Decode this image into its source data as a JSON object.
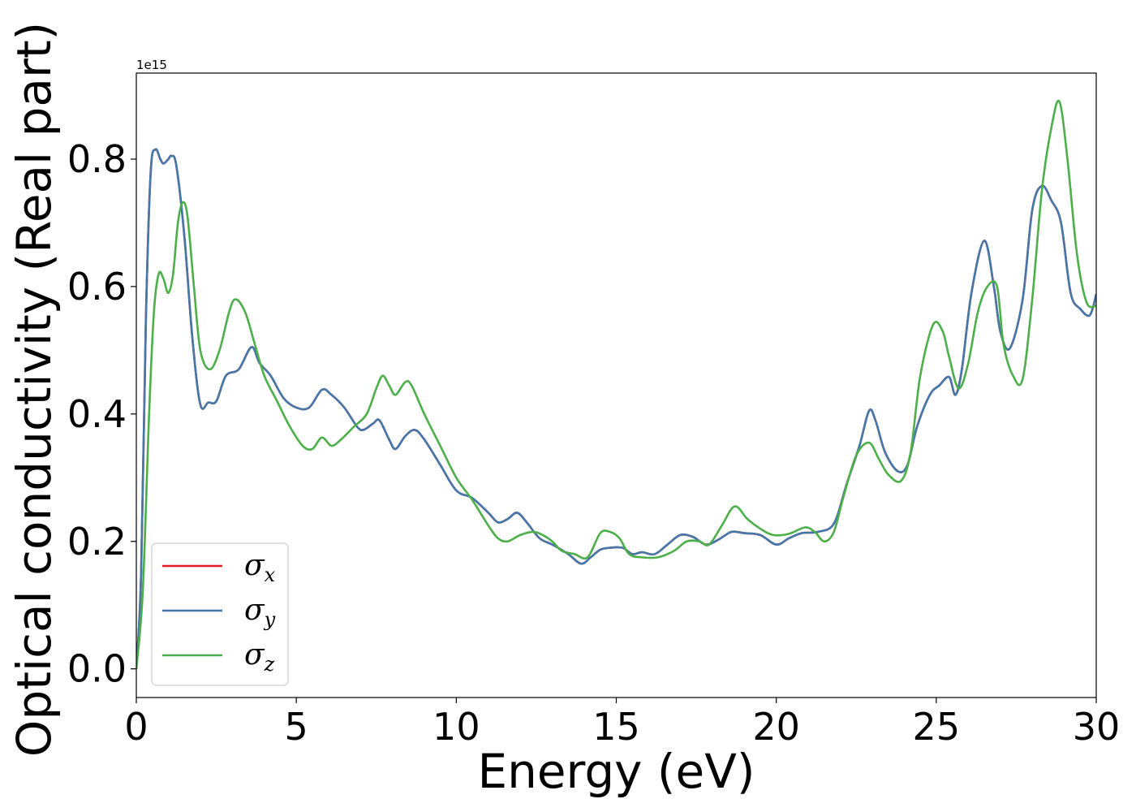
{
  "chart_data": {
    "type": "line",
    "title": "",
    "xlabel": "Energy (eV)",
    "ylabel": "Optical conductivity (Real part)",
    "y_offset_label": "1e15",
    "xlim": [
      0,
      30
    ],
    "ylim": [
      -0.045,
      0.935
    ],
    "xticks": [
      0,
      5,
      10,
      15,
      20,
      25,
      30
    ],
    "xtick_labels": [
      "0",
      "5",
      "10",
      "15",
      "20",
      "25",
      "30"
    ],
    "yticks": [
      0.0,
      0.2,
      0.4,
      0.6,
      0.8
    ],
    "ytick_labels": [
      "0.0",
      "0.2",
      "0.4",
      "0.6",
      "0.8"
    ],
    "grid": false,
    "legend_position": "lower-left",
    "series": [
      {
        "name": "σx",
        "symbol": "σ",
        "subscript": "x",
        "color": "#e41a1c",
        "points": [
          [
            0,
            0
          ],
          [
            0.15,
            0.15
          ],
          [
            0.3,
            0.55
          ],
          [
            0.45,
            0.78
          ],
          [
            0.6,
            0.815
          ],
          [
            0.75,
            0.8
          ],
          [
            0.85,
            0.793
          ],
          [
            1.0,
            0.8
          ],
          [
            1.1,
            0.805
          ],
          [
            1.25,
            0.79
          ],
          [
            1.5,
            0.68
          ],
          [
            1.75,
            0.52
          ],
          [
            2.0,
            0.415
          ],
          [
            2.25,
            0.418
          ],
          [
            2.5,
            0.42
          ],
          [
            2.8,
            0.46
          ],
          [
            3.2,
            0.47
          ],
          [
            3.6,
            0.505
          ],
          [
            3.85,
            0.48
          ],
          [
            4.2,
            0.46
          ],
          [
            4.6,
            0.425
          ],
          [
            5.0,
            0.41
          ],
          [
            5.4,
            0.41
          ],
          [
            5.8,
            0.438
          ],
          [
            6.1,
            0.43
          ],
          [
            6.5,
            0.41
          ],
          [
            6.9,
            0.38
          ],
          [
            7.1,
            0.375
          ],
          [
            7.4,
            0.385
          ],
          [
            7.6,
            0.39
          ],
          [
            7.9,
            0.36
          ],
          [
            8.1,
            0.345
          ],
          [
            8.4,
            0.365
          ],
          [
            8.7,
            0.375
          ],
          [
            9.0,
            0.36
          ],
          [
            9.5,
            0.32
          ],
          [
            10.0,
            0.28
          ],
          [
            10.5,
            0.268
          ],
          [
            11.0,
            0.245
          ],
          [
            11.3,
            0.23
          ],
          [
            11.6,
            0.235
          ],
          [
            11.9,
            0.245
          ],
          [
            12.2,
            0.23
          ],
          [
            12.6,
            0.205
          ],
          [
            13.0,
            0.195
          ],
          [
            13.5,
            0.18
          ],
          [
            13.9,
            0.165
          ],
          [
            14.2,
            0.175
          ],
          [
            14.5,
            0.187
          ],
          [
            14.8,
            0.19
          ],
          [
            15.2,
            0.19
          ],
          [
            15.5,
            0.18
          ],
          [
            15.8,
            0.183
          ],
          [
            16.2,
            0.18
          ],
          [
            16.6,
            0.195
          ],
          [
            17.0,
            0.21
          ],
          [
            17.4,
            0.207
          ],
          [
            17.8,
            0.195
          ],
          [
            18.2,
            0.203
          ],
          [
            18.6,
            0.215
          ],
          [
            19.0,
            0.213
          ],
          [
            19.5,
            0.21
          ],
          [
            20.0,
            0.195
          ],
          [
            20.4,
            0.205
          ],
          [
            20.8,
            0.213
          ],
          [
            21.3,
            0.215
          ],
          [
            21.8,
            0.228
          ],
          [
            22.2,
            0.29
          ],
          [
            22.6,
            0.35
          ],
          [
            22.9,
            0.405
          ],
          [
            23.1,
            0.39
          ],
          [
            23.4,
            0.34
          ],
          [
            23.8,
            0.31
          ],
          [
            24.1,
            0.32
          ],
          [
            24.4,
            0.38
          ],
          [
            24.8,
            0.43
          ],
          [
            25.1,
            0.445
          ],
          [
            25.4,
            0.458
          ],
          [
            25.6,
            0.43
          ],
          [
            25.8,
            0.47
          ],
          [
            26.1,
            0.59
          ],
          [
            26.5,
            0.672
          ],
          [
            26.8,
            0.6
          ],
          [
            27.0,
            0.53
          ],
          [
            27.3,
            0.503
          ],
          [
            27.7,
            0.58
          ],
          [
            28.0,
            0.72
          ],
          [
            28.3,
            0.758
          ],
          [
            28.6,
            0.735
          ],
          [
            28.9,
            0.7
          ],
          [
            29.2,
            0.59
          ],
          [
            29.5,
            0.565
          ],
          [
            29.8,
            0.555
          ],
          [
            30.0,
            0.588
          ]
        ]
      },
      {
        "name": "σy",
        "symbol": "σ",
        "subscript": "y",
        "color": "#4477aa",
        "points": [
          [
            0,
            0
          ],
          [
            0.15,
            0.15
          ],
          [
            0.3,
            0.55
          ],
          [
            0.45,
            0.78
          ],
          [
            0.6,
            0.815
          ],
          [
            0.75,
            0.8
          ],
          [
            0.85,
            0.793
          ],
          [
            1.0,
            0.8
          ],
          [
            1.1,
            0.805
          ],
          [
            1.25,
            0.79
          ],
          [
            1.5,
            0.68
          ],
          [
            1.75,
            0.52
          ],
          [
            2.0,
            0.415
          ],
          [
            2.25,
            0.418
          ],
          [
            2.5,
            0.42
          ],
          [
            2.8,
            0.46
          ],
          [
            3.2,
            0.47
          ],
          [
            3.6,
            0.505
          ],
          [
            3.85,
            0.48
          ],
          [
            4.2,
            0.46
          ],
          [
            4.6,
            0.425
          ],
          [
            5.0,
            0.41
          ],
          [
            5.4,
            0.41
          ],
          [
            5.8,
            0.438
          ],
          [
            6.1,
            0.43
          ],
          [
            6.5,
            0.41
          ],
          [
            6.9,
            0.38
          ],
          [
            7.1,
            0.375
          ],
          [
            7.4,
            0.385
          ],
          [
            7.6,
            0.39
          ],
          [
            7.9,
            0.36
          ],
          [
            8.1,
            0.345
          ],
          [
            8.4,
            0.365
          ],
          [
            8.7,
            0.375
          ],
          [
            9.0,
            0.36
          ],
          [
            9.5,
            0.32
          ],
          [
            10.0,
            0.28
          ],
          [
            10.5,
            0.268
          ],
          [
            11.0,
            0.245
          ],
          [
            11.3,
            0.23
          ],
          [
            11.6,
            0.235
          ],
          [
            11.9,
            0.245
          ],
          [
            12.2,
            0.23
          ],
          [
            12.6,
            0.205
          ],
          [
            13.0,
            0.195
          ],
          [
            13.5,
            0.18
          ],
          [
            13.9,
            0.165
          ],
          [
            14.2,
            0.175
          ],
          [
            14.5,
            0.187
          ],
          [
            14.8,
            0.19
          ],
          [
            15.2,
            0.19
          ],
          [
            15.5,
            0.18
          ],
          [
            15.8,
            0.183
          ],
          [
            16.2,
            0.18
          ],
          [
            16.6,
            0.195
          ],
          [
            17.0,
            0.21
          ],
          [
            17.4,
            0.207
          ],
          [
            17.8,
            0.195
          ],
          [
            18.2,
            0.203
          ],
          [
            18.6,
            0.215
          ],
          [
            19.0,
            0.213
          ],
          [
            19.5,
            0.21
          ],
          [
            20.0,
            0.195
          ],
          [
            20.4,
            0.205
          ],
          [
            20.8,
            0.213
          ],
          [
            21.3,
            0.215
          ],
          [
            21.8,
            0.228
          ],
          [
            22.2,
            0.29
          ],
          [
            22.6,
            0.35
          ],
          [
            22.9,
            0.405
          ],
          [
            23.1,
            0.39
          ],
          [
            23.4,
            0.34
          ],
          [
            23.8,
            0.31
          ],
          [
            24.1,
            0.32
          ],
          [
            24.4,
            0.38
          ],
          [
            24.8,
            0.43
          ],
          [
            25.1,
            0.445
          ],
          [
            25.4,
            0.458
          ],
          [
            25.6,
            0.43
          ],
          [
            25.8,
            0.47
          ],
          [
            26.1,
            0.59
          ],
          [
            26.5,
            0.672
          ],
          [
            26.8,
            0.6
          ],
          [
            27.0,
            0.53
          ],
          [
            27.3,
            0.503
          ],
          [
            27.7,
            0.58
          ],
          [
            28.0,
            0.72
          ],
          [
            28.3,
            0.758
          ],
          [
            28.6,
            0.735
          ],
          [
            28.9,
            0.7
          ],
          [
            29.2,
            0.59
          ],
          [
            29.5,
            0.565
          ],
          [
            29.8,
            0.555
          ],
          [
            30.0,
            0.588
          ]
        ]
      },
      {
        "name": "σz",
        "symbol": "σ",
        "subscript": "z",
        "color": "#4daf4a",
        "points": [
          [
            0,
            0
          ],
          [
            0.2,
            0.12
          ],
          [
            0.4,
            0.4
          ],
          [
            0.55,
            0.56
          ],
          [
            0.7,
            0.62
          ],
          [
            0.85,
            0.612
          ],
          [
            1.0,
            0.59
          ],
          [
            1.15,
            0.62
          ],
          [
            1.3,
            0.7
          ],
          [
            1.45,
            0.732
          ],
          [
            1.6,
            0.71
          ],
          [
            1.8,
            0.6
          ],
          [
            2.0,
            0.5
          ],
          [
            2.3,
            0.47
          ],
          [
            2.6,
            0.5
          ],
          [
            2.9,
            0.56
          ],
          [
            3.1,
            0.58
          ],
          [
            3.4,
            0.56
          ],
          [
            3.7,
            0.51
          ],
          [
            4.0,
            0.46
          ],
          [
            4.4,
            0.42
          ],
          [
            4.8,
            0.38
          ],
          [
            5.2,
            0.35
          ],
          [
            5.5,
            0.345
          ],
          [
            5.8,
            0.363
          ],
          [
            6.1,
            0.35
          ],
          [
            6.4,
            0.36
          ],
          [
            6.8,
            0.38
          ],
          [
            7.2,
            0.4
          ],
          [
            7.5,
            0.44
          ],
          [
            7.7,
            0.46
          ],
          [
            7.9,
            0.445
          ],
          [
            8.1,
            0.43
          ],
          [
            8.4,
            0.45
          ],
          [
            8.6,
            0.445
          ],
          [
            9.0,
            0.4
          ],
          [
            9.5,
            0.35
          ],
          [
            10.0,
            0.3
          ],
          [
            10.5,
            0.265
          ],
          [
            11.0,
            0.225
          ],
          [
            11.3,
            0.205
          ],
          [
            11.6,
            0.2
          ],
          [
            12.0,
            0.21
          ],
          [
            12.4,
            0.215
          ],
          [
            12.7,
            0.21
          ],
          [
            13.0,
            0.2
          ],
          [
            13.3,
            0.185
          ],
          [
            13.7,
            0.18
          ],
          [
            14.1,
            0.175
          ],
          [
            14.5,
            0.213
          ],
          [
            14.8,
            0.215
          ],
          [
            15.1,
            0.205
          ],
          [
            15.4,
            0.18
          ],
          [
            15.8,
            0.175
          ],
          [
            16.3,
            0.175
          ],
          [
            16.8,
            0.185
          ],
          [
            17.2,
            0.2
          ],
          [
            17.6,
            0.2
          ],
          [
            17.9,
            0.195
          ],
          [
            18.3,
            0.225
          ],
          [
            18.7,
            0.255
          ],
          [
            19.1,
            0.235
          ],
          [
            19.5,
            0.22
          ],
          [
            19.9,
            0.21
          ],
          [
            20.4,
            0.212
          ],
          [
            20.9,
            0.222
          ],
          [
            21.2,
            0.215
          ],
          [
            21.5,
            0.2
          ],
          [
            21.8,
            0.215
          ],
          [
            22.1,
            0.27
          ],
          [
            22.5,
            0.335
          ],
          [
            22.9,
            0.355
          ],
          [
            23.2,
            0.33
          ],
          [
            23.5,
            0.305
          ],
          [
            23.9,
            0.295
          ],
          [
            24.2,
            0.34
          ],
          [
            24.5,
            0.46
          ],
          [
            24.9,
            0.54
          ],
          [
            25.2,
            0.53
          ],
          [
            25.4,
            0.49
          ],
          [
            25.7,
            0.44
          ],
          [
            26.0,
            0.48
          ],
          [
            26.3,
            0.56
          ],
          [
            26.6,
            0.6
          ],
          [
            26.9,
            0.6
          ],
          [
            27.1,
            0.51
          ],
          [
            27.4,
            0.46
          ],
          [
            27.7,
            0.455
          ],
          [
            28.0,
            0.58
          ],
          [
            28.3,
            0.75
          ],
          [
            28.6,
            0.85
          ],
          [
            28.85,
            0.89
          ],
          [
            29.1,
            0.8
          ],
          [
            29.4,
            0.65
          ],
          [
            29.7,
            0.575
          ],
          [
            30.0,
            0.57
          ]
        ]
      }
    ]
  }
}
